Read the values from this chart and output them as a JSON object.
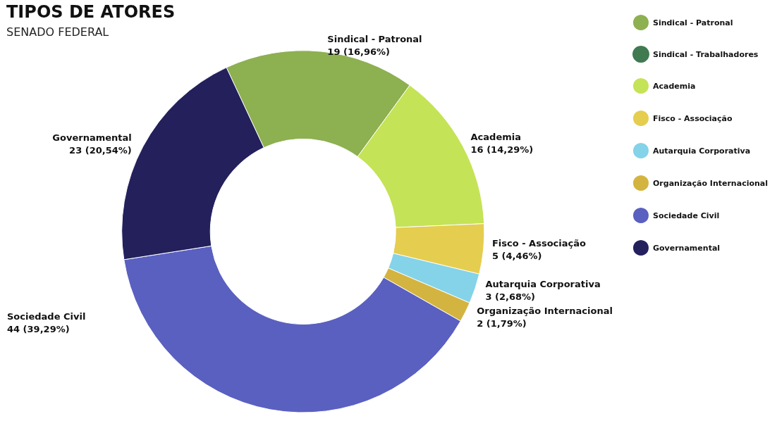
{
  "chart_data": {
    "type": "donut",
    "title": "TIPOS DE ATORES",
    "subtitle": "SENADO FEDERAL",
    "categories": [
      "Sindical - Patronal",
      "Sindical - Trabalhadores",
      "Academia",
      "Fisco - Associação",
      "Autarquia Corporativa",
      "Organização Internacional",
      "Sociedade Civil",
      "Governamental"
    ],
    "values": [
      19,
      0,
      16,
      5,
      3,
      2,
      44,
      23
    ],
    "colors": [
      "#8db050",
      "#3f7a50",
      "#c5e356",
      "#e5cd4f",
      "#84d3e8",
      "#d4b440",
      "#5a60c0",
      "#23205c"
    ],
    "value_labels": [
      "19 (16,96%)",
      null,
      "16 (14,29%)",
      "5 (4,46%)",
      "3 (2,68%)",
      "2 (1,79%)",
      "44 (39,29%)",
      "23 (20,54%)"
    ],
    "legend": "top right"
  }
}
